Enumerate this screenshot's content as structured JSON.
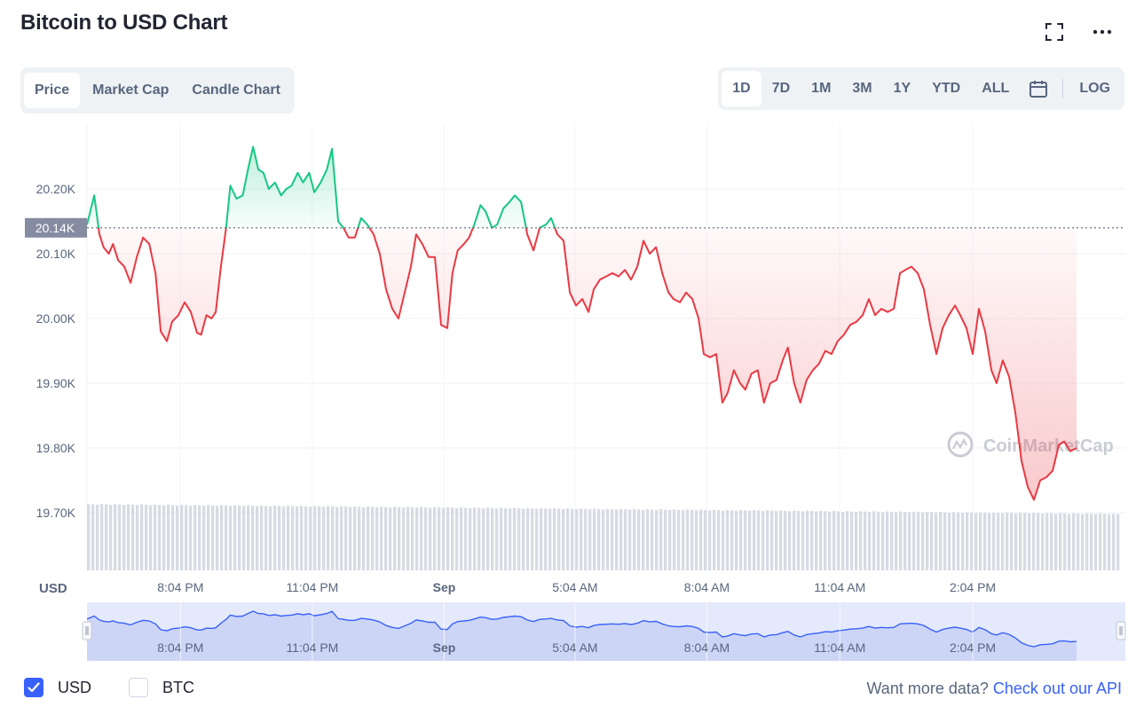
{
  "header": {
    "title": "Bitcoin to USD Chart"
  },
  "tabs": [
    {
      "label": "Price",
      "active": true
    },
    {
      "label": "Market Cap",
      "active": false
    },
    {
      "label": "Candle Chart",
      "active": false
    }
  ],
  "ranges": [
    {
      "label": "1D",
      "active": true
    },
    {
      "label": "7D",
      "active": false
    },
    {
      "label": "1M",
      "active": false
    },
    {
      "label": "3M",
      "active": false
    },
    {
      "label": "1Y",
      "active": false
    },
    {
      "label": "YTD",
      "active": false
    },
    {
      "label": "ALL",
      "active": false
    }
  ],
  "log_label": "LOG",
  "currency_label": "USD",
  "watermark": "CoinMarketCap",
  "footer": {
    "usd_label": "USD",
    "btc_label": "BTC",
    "usd_checked": true,
    "btc_checked": false,
    "more_data_text": "Want more data?",
    "api_link_text": "Check out our API"
  },
  "colors": {
    "up": "#16c784",
    "down": "#ea3943",
    "accent": "#3861fb",
    "muted": "#58667e"
  },
  "chart_data": {
    "type": "line",
    "baseline": 20140,
    "baseline_label": "20.14K",
    "ylim": [
      19600,
      20330
    ],
    "yticks": [
      {
        "value": 20200,
        "label": "20.20K"
      },
      {
        "value": 20100,
        "label": "20.10K"
      },
      {
        "value": 20000,
        "label": "20.00K"
      },
      {
        "value": 19900,
        "label": "19.90K"
      },
      {
        "value": 19800,
        "label": "19.80K"
      },
      {
        "value": 19700,
        "label": "19.70K"
      }
    ],
    "xlim": [
      0,
      1
    ],
    "xticks": [
      {
        "pos": 0.09,
        "label": "8:04 PM"
      },
      {
        "pos": 0.217,
        "label": "11:04 PM"
      },
      {
        "pos": 0.344,
        "label": "Sep"
      },
      {
        "pos": 0.47,
        "label": "5:04 AM"
      },
      {
        "pos": 0.597,
        "label": "8:04 AM"
      },
      {
        "pos": 0.725,
        "label": "11:04 AM"
      },
      {
        "pos": 0.853,
        "label": "2:04 PM"
      }
    ],
    "series": [
      {
        "points": [
          [
            0.0,
            20145
          ],
          [
            0.007,
            20190
          ],
          [
            0.012,
            20130
          ],
          [
            0.016,
            20110
          ],
          [
            0.021,
            20100
          ],
          [
            0.025,
            20115
          ],
          [
            0.03,
            20090
          ],
          [
            0.036,
            20080
          ],
          [
            0.042,
            20055
          ],
          [
            0.048,
            20095
          ],
          [
            0.054,
            20125
          ],
          [
            0.06,
            20115
          ],
          [
            0.066,
            20070
          ],
          [
            0.071,
            19980
          ],
          [
            0.077,
            19965
          ],
          [
            0.082,
            19995
          ],
          [
            0.088,
            20005
          ],
          [
            0.094,
            20025
          ],
          [
            0.1,
            20010
          ],
          [
            0.106,
            19978
          ],
          [
            0.11,
            19975
          ],
          [
            0.115,
            20005
          ],
          [
            0.12,
            20000
          ],
          [
            0.124,
            20010
          ],
          [
            0.129,
            20080
          ],
          [
            0.134,
            20140
          ],
          [
            0.138,
            20205
          ],
          [
            0.144,
            20185
          ],
          [
            0.15,
            20190
          ],
          [
            0.155,
            20230
          ],
          [
            0.16,
            20265
          ],
          [
            0.165,
            20230
          ],
          [
            0.17,
            20225
          ],
          [
            0.175,
            20200
          ],
          [
            0.181,
            20210
          ],
          [
            0.187,
            20190
          ],
          [
            0.192,
            20200
          ],
          [
            0.197,
            20205
          ],
          [
            0.203,
            20225
          ],
          [
            0.208,
            20210
          ],
          [
            0.214,
            20225
          ],
          [
            0.219,
            20195
          ],
          [
            0.225,
            20210
          ],
          [
            0.231,
            20230
          ],
          [
            0.236,
            20262
          ],
          [
            0.242,
            20150
          ],
          [
            0.247,
            20140
          ],
          [
            0.252,
            20125
          ],
          [
            0.258,
            20125
          ],
          [
            0.264,
            20155
          ],
          [
            0.27,
            20145
          ],
          [
            0.276,
            20130
          ],
          [
            0.282,
            20100
          ],
          [
            0.288,
            20045
          ],
          [
            0.294,
            20015
          ],
          [
            0.3,
            20000
          ],
          [
            0.306,
            20040
          ],
          [
            0.312,
            20080
          ],
          [
            0.317,
            20130
          ],
          [
            0.323,
            20115
          ],
          [
            0.329,
            20095
          ],
          [
            0.335,
            20095
          ],
          [
            0.341,
            19990
          ],
          [
            0.347,
            19985
          ],
          [
            0.352,
            20070
          ],
          [
            0.357,
            20105
          ],
          [
            0.363,
            20115
          ],
          [
            0.368,
            20125
          ],
          [
            0.373,
            20145
          ],
          [
            0.379,
            20175
          ],
          [
            0.384,
            20165
          ],
          [
            0.39,
            20140
          ],
          [
            0.395,
            20145
          ],
          [
            0.401,
            20170
          ],
          [
            0.407,
            20180
          ],
          [
            0.412,
            20190
          ],
          [
            0.418,
            20180
          ],
          [
            0.424,
            20130
          ],
          [
            0.43,
            20105
          ],
          [
            0.436,
            20140
          ],
          [
            0.442,
            20145
          ],
          [
            0.447,
            20155
          ],
          [
            0.453,
            20130
          ],
          [
            0.459,
            20120
          ],
          [
            0.465,
            20040
          ],
          [
            0.471,
            20020
          ],
          [
            0.477,
            20030
          ],
          [
            0.483,
            20010
          ],
          [
            0.488,
            20045
          ],
          [
            0.494,
            20060
          ],
          [
            0.5,
            20065
          ],
          [
            0.506,
            20070
          ],
          [
            0.512,
            20065
          ],
          [
            0.518,
            20075
          ],
          [
            0.524,
            20060
          ],
          [
            0.53,
            20080
          ],
          [
            0.536,
            20120
          ],
          [
            0.542,
            20100
          ],
          [
            0.548,
            20110
          ],
          [
            0.554,
            20070
          ],
          [
            0.56,
            20040
          ],
          [
            0.565,
            20030
          ],
          [
            0.571,
            20025
          ],
          [
            0.577,
            20040
          ],
          [
            0.583,
            20030
          ],
          [
            0.589,
            20000
          ],
          [
            0.594,
            19945
          ],
          [
            0.6,
            19940
          ],
          [
            0.606,
            19945
          ],
          [
            0.612,
            19870
          ],
          [
            0.617,
            19885
          ],
          [
            0.623,
            19920
          ],
          [
            0.629,
            19900
          ],
          [
            0.634,
            19890
          ],
          [
            0.64,
            19915
          ],
          [
            0.646,
            19920
          ],
          [
            0.652,
            19870
          ],
          [
            0.658,
            19900
          ],
          [
            0.664,
            19905
          ],
          [
            0.67,
            19935
          ],
          [
            0.675,
            19955
          ],
          [
            0.681,
            19900
          ],
          [
            0.687,
            19870
          ],
          [
            0.693,
            19905
          ],
          [
            0.699,
            19920
          ],
          [
            0.705,
            19930
          ],
          [
            0.711,
            19950
          ],
          [
            0.717,
            19945
          ],
          [
            0.723,
            19965
          ],
          [
            0.729,
            19975
          ],
          [
            0.735,
            19990
          ],
          [
            0.741,
            19995
          ],
          [
            0.747,
            20005
          ],
          [
            0.753,
            20030
          ],
          [
            0.759,
            20005
          ],
          [
            0.765,
            20015
          ],
          [
            0.771,
            20010
          ],
          [
            0.777,
            20015
          ],
          [
            0.783,
            20070
          ],
          [
            0.788,
            20075
          ],
          [
            0.794,
            20080
          ],
          [
            0.8,
            20070
          ],
          [
            0.806,
            20045
          ],
          [
            0.812,
            19990
          ],
          [
            0.818,
            19945
          ],
          [
            0.824,
            19985
          ],
          [
            0.83,
            20005
          ],
          [
            0.836,
            20020
          ],
          [
            0.841,
            20005
          ],
          [
            0.847,
            19985
          ],
          [
            0.853,
            19945
          ],
          [
            0.859,
            20015
          ],
          [
            0.865,
            19980
          ],
          [
            0.871,
            19920
          ],
          [
            0.876,
            19900
          ],
          [
            0.882,
            19935
          ],
          [
            0.888,
            19910
          ],
          [
            0.894,
            19855
          ],
          [
            0.9,
            19780
          ],
          [
            0.906,
            19740
          ],
          [
            0.912,
            19720
          ],
          [
            0.918,
            19750
          ],
          [
            0.924,
            19755
          ],
          [
            0.93,
            19765
          ],
          [
            0.936,
            19805
          ],
          [
            0.941,
            19810
          ],
          [
            0.947,
            19795
          ],
          [
            0.953,
            19800
          ]
        ]
      }
    ]
  }
}
